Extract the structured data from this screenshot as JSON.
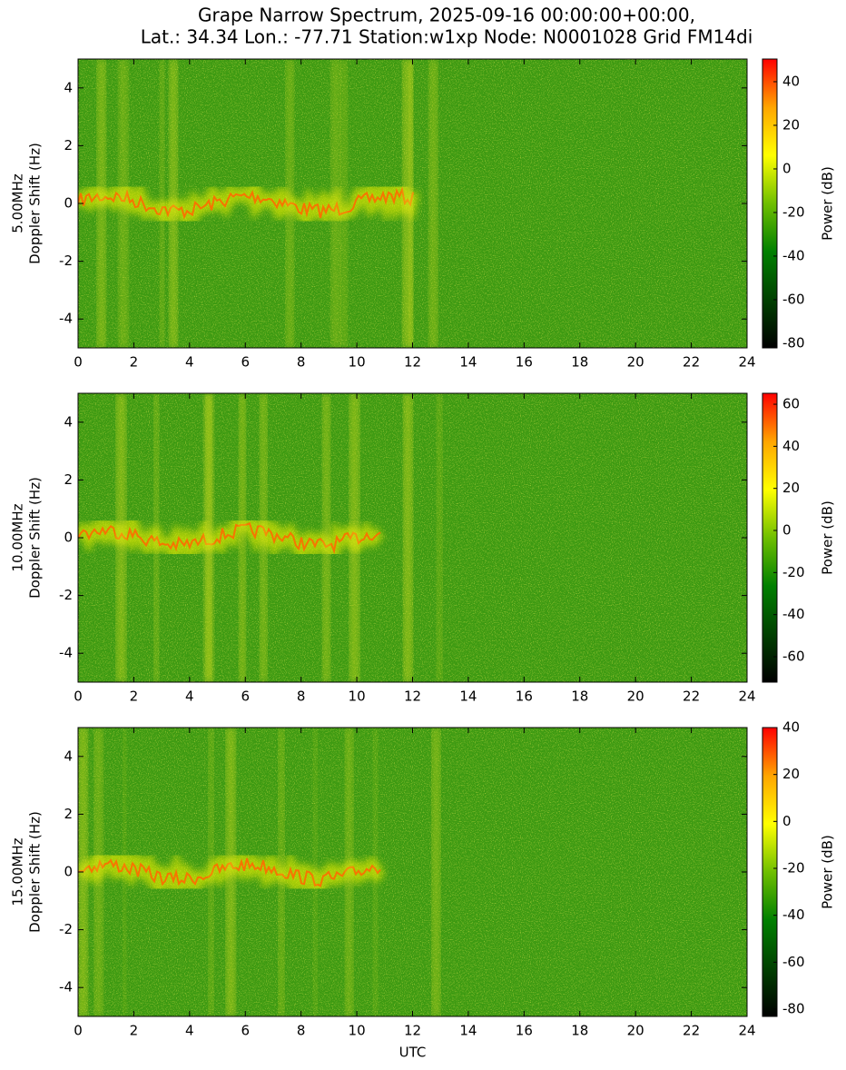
{
  "title": [
    "Grape Narrow Spectrum, 2025-09-16 00:00:00+00:00,",
    "Lat.: 34.34 Lon.: -77.71 Station:w1xp Node: N0001028 Grid FM14di"
  ],
  "chart_data": [
    {
      "type": "heatmap",
      "ylabel": [
        "5.00MHz",
        "Doppler Shift (Hz)"
      ],
      "xlim": [
        0,
        24
      ],
      "xticks": [
        0,
        2,
        4,
        6,
        8,
        10,
        12,
        14,
        16,
        18,
        20,
        22,
        24
      ],
      "ylim": [
        -5,
        5
      ],
      "yticks": [
        -4,
        -2,
        0,
        2,
        4
      ],
      "colorbar": {
        "label": "Power (dB)",
        "lim": [
          -82.1,
          50.4
        ],
        "ticks": [
          -80,
          -60,
          -40,
          -20,
          0,
          20,
          40
        ],
        "colors": [
          "#ff0000",
          "#ffa500",
          "#ffff00",
          "#6fbf00",
          "#008000",
          "#004000",
          "#000000"
        ]
      }
    },
    {
      "type": "heatmap",
      "ylabel": [
        "10.00MHz",
        "Doppler Shift (Hz)"
      ],
      "xlim": [
        0,
        24
      ],
      "xticks": [
        0,
        2,
        4,
        6,
        8,
        10,
        12,
        14,
        16,
        18,
        20,
        22,
        24
      ],
      "ylim": [
        -5,
        5
      ],
      "yticks": [
        -4,
        -2,
        0,
        2,
        4
      ],
      "colorbar": {
        "label": "Power (dB)",
        "lim": [
          -72.1,
          65.2
        ],
        "ticks": [
          -60,
          -40,
          -20,
          0,
          20,
          40,
          60
        ],
        "colors": [
          "#ff0000",
          "#ffa500",
          "#ffff00",
          "#6fbf00",
          "#008000",
          "#004000",
          "#000000"
        ]
      }
    },
    {
      "type": "heatmap",
      "ylabel": [
        "15.00MHz",
        "Doppler Shift (Hz)"
      ],
      "xlabel": "UTC",
      "xlim": [
        0,
        24
      ],
      "xticks": [
        0,
        2,
        4,
        6,
        8,
        10,
        12,
        14,
        16,
        18,
        20,
        22,
        24
      ],
      "ylim": [
        -5,
        5
      ],
      "yticks": [
        -4,
        -2,
        0,
        2,
        4
      ],
      "colorbar": {
        "label": "Power (dB)",
        "lim": [
          -83.1,
          40
        ],
        "ticks": [
          -80,
          -60,
          -40,
          -20,
          0,
          20,
          40
        ],
        "colors": [
          "#ff0000",
          "#ffa500",
          "#ffff00",
          "#6fbf00",
          "#008000",
          "#004000",
          "#000000"
        ]
      }
    }
  ]
}
